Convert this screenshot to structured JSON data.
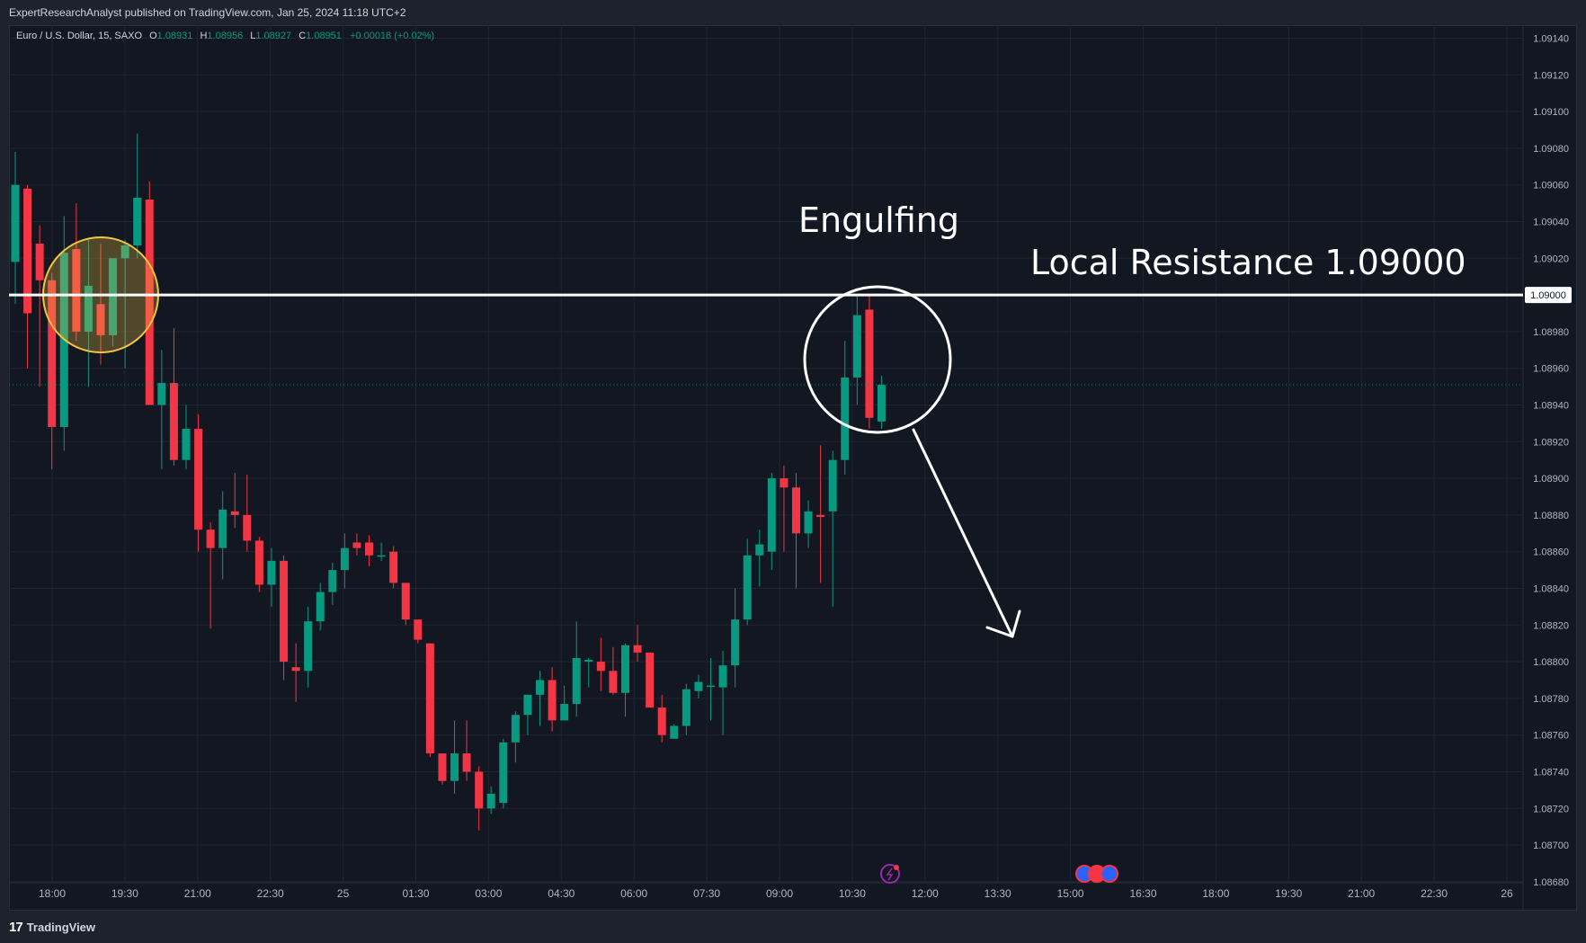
{
  "header": {
    "published_text": "ExpertResearchAnalyst published on TradingView.com, Jan 25, 2024 11:18 UTC+2"
  },
  "legend": {
    "symbol": "Euro / U.S. Dollar, 15, SAXO",
    "o_label": "O",
    "o_value": "1.08931",
    "h_label": "H",
    "h_value": "1.08956",
    "l_label": "L",
    "l_value": "1.08927",
    "c_label": "C",
    "c_value": "1.08951",
    "change": "+0.00018 (+0.02%)"
  },
  "footer": {
    "logo_mark": "17",
    "logo_text": "TradingView"
  },
  "colors": {
    "background": "#131722",
    "frame": "#1e222d",
    "grid": "#1f2430",
    "up": "#089981",
    "down": "#f23645",
    "axis_text": "#b2b5be",
    "annotation": "#ffffff",
    "highlight_circle": "#f5c542"
  },
  "chart_data": {
    "type": "candlestick",
    "symbol": "Euro / U.S. Dollar",
    "timeframe": "15",
    "source": "SAXO",
    "y_tick_labels": [
      "1.09140",
      "1.09120",
      "1.09100",
      "1.09080",
      "1.09060",
      "1.09040",
      "1.09020",
      "1.09000",
      "1.08980",
      "1.08960",
      "1.08940",
      "1.08920",
      "1.08900",
      "1.08880",
      "1.08860",
      "1.08840",
      "1.08820",
      "1.08800",
      "1.08780",
      "1.08760",
      "1.08740",
      "1.08720",
      "1.08700",
      "1.08680"
    ],
    "x_tick_labels": [
      "18:00",
      "19:30",
      "21:00",
      "22:30",
      "25",
      "01:30",
      "03:00",
      "04:30",
      "06:00",
      "07:30",
      "09:00",
      "10:30",
      "12:00",
      "13:30",
      "15:00",
      "16:30",
      "18:00",
      "19:30",
      "21:00",
      "22:30",
      "26"
    ],
    "ylim": [
      1.0868,
      1.0914
    ],
    "last_price": 1.08951,
    "horizontal_lines": [
      {
        "price": 1.09,
        "label": "1.09000"
      }
    ],
    "annotations": [
      {
        "text": "Engulfing"
      },
      {
        "text": "Local Resistance 1.09000"
      }
    ],
    "candles": [
      {
        "o": 1.09018,
        "h": 1.09078,
        "l": 1.08995,
        "c": 1.0906
      },
      {
        "o": 1.09058,
        "h": 1.0906,
        "l": 1.0896,
        "c": 1.0899
      },
      {
        "o": 1.09028,
        "h": 1.09038,
        "l": 1.0895,
        "c": 1.09008
      },
      {
        "o": 1.09008,
        "h": 1.09012,
        "l": 1.08905,
        "c": 1.08928
      },
      {
        "o": 1.08928,
        "h": 1.09043,
        "l": 1.08915,
        "c": 1.09023
      },
      {
        "o": 1.09025,
        "h": 1.0905,
        "l": 1.08975,
        "c": 1.0898
      },
      {
        "o": 1.0898,
        "h": 1.0903,
        "l": 1.0895,
        "c": 1.09005
      },
      {
        "o": 1.08995,
        "h": 1.09028,
        "l": 1.08962,
        "c": 1.08978
      },
      {
        "o": 1.08978,
        "h": 1.0902,
        "l": 1.08972,
        "c": 1.0902
      },
      {
        "o": 1.0902,
        "h": 1.0903,
        "l": 1.0896,
        "c": 1.09027
      },
      {
        "o": 1.09027,
        "h": 1.09088,
        "l": 1.0902,
        "c": 1.09053
      },
      {
        "o": 1.09052,
        "h": 1.09062,
        "l": 1.0894,
        "c": 1.0894
      },
      {
        "o": 1.0894,
        "h": 1.0897,
        "l": 1.08905,
        "c": 1.08952
      },
      {
        "o": 1.08952,
        "h": 1.08982,
        "l": 1.08907,
        "c": 1.0891
      },
      {
        "o": 1.0891,
        "h": 1.0894,
        "l": 1.08905,
        "c": 1.08927
      },
      {
        "o": 1.08927,
        "h": 1.08935,
        "l": 1.0886,
        "c": 1.08872
      },
      {
        "o": 1.08872,
        "h": 1.08876,
        "l": 1.08818,
        "c": 1.08862
      },
      {
        "o": 1.08862,
        "h": 1.08893,
        "l": 1.08845,
        "c": 1.08883
      },
      {
        "o": 1.08882,
        "h": 1.08903,
        "l": 1.08873,
        "c": 1.0888
      },
      {
        "o": 1.0888,
        "h": 1.08902,
        "l": 1.0886,
        "c": 1.08866
      },
      {
        "o": 1.08866,
        "h": 1.08868,
        "l": 1.08838,
        "c": 1.08842
      },
      {
        "o": 1.08842,
        "h": 1.08862,
        "l": 1.0883,
        "c": 1.08855
      },
      {
        "o": 1.08855,
        "h": 1.08858,
        "l": 1.0879,
        "c": 1.088
      },
      {
        "o": 1.08797,
        "h": 1.0881,
        "l": 1.08778,
        "c": 1.08795
      },
      {
        "o": 1.08795,
        "h": 1.0883,
        "l": 1.08786,
        "c": 1.08822
      },
      {
        "o": 1.08822,
        "h": 1.08843,
        "l": 1.08817,
        "c": 1.08838
      },
      {
        "o": 1.08838,
        "h": 1.08854,
        "l": 1.08831,
        "c": 1.0885
      },
      {
        "o": 1.0885,
        "h": 1.0887,
        "l": 1.0884,
        "c": 1.08862
      },
      {
        "o": 1.08865,
        "h": 1.0887,
        "l": 1.08858,
        "c": 1.08862
      },
      {
        "o": 1.08865,
        "h": 1.08869,
        "l": 1.08852,
        "c": 1.08858
      },
      {
        "o": 1.08858,
        "h": 1.08865,
        "l": 1.08855,
        "c": 1.08858
      },
      {
        "o": 1.0886,
        "h": 1.08863,
        "l": 1.0884,
        "c": 1.08843
      },
      {
        "o": 1.08843,
        "h": 1.08843,
        "l": 1.0882,
        "c": 1.08823
      },
      {
        "o": 1.08823,
        "h": 1.08823,
        "l": 1.0881,
        "c": 1.08812
      },
      {
        "o": 1.0881,
        "h": 1.0881,
        "l": 1.08748,
        "c": 1.0875
      },
      {
        "o": 1.0875,
        "h": 1.0875,
        "l": 1.08733,
        "c": 1.08735
      },
      {
        "o": 1.08735,
        "h": 1.08768,
        "l": 1.08728,
        "c": 1.0875
      },
      {
        "o": 1.0875,
        "h": 1.08768,
        "l": 1.08735,
        "c": 1.0874
      },
      {
        "o": 1.0874,
        "h": 1.08743,
        "l": 1.08708,
        "c": 1.0872
      },
      {
        "o": 1.0872,
        "h": 1.08732,
        "l": 1.08717,
        "c": 1.08728
      },
      {
        "o": 1.08723,
        "h": 1.08758,
        "l": 1.0872,
        "c": 1.08756
      },
      {
        "o": 1.08756,
        "h": 1.08773,
        "l": 1.08745,
        "c": 1.08771
      },
      {
        "o": 1.08771,
        "h": 1.0878,
        "l": 1.0876,
        "c": 1.08782
      },
      {
        "o": 1.08782,
        "h": 1.08795,
        "l": 1.08765,
        "c": 1.0879
      },
      {
        "o": 1.0879,
        "h": 1.08797,
        "l": 1.08762,
        "c": 1.08768
      },
      {
        "o": 1.08768,
        "h": 1.08787,
        "l": 1.0877,
        "c": 1.08777
      },
      {
        "o": 1.08777,
        "h": 1.08822,
        "l": 1.0877,
        "c": 1.08802
      },
      {
        "o": 1.088,
        "h": 1.08802,
        "l": 1.08786,
        "c": 1.08801
      },
      {
        "o": 1.088,
        "h": 1.08813,
        "l": 1.08784,
        "c": 1.08795
      },
      {
        "o": 1.08795,
        "h": 1.08808,
        "l": 1.08782,
        "c": 1.08783
      },
      {
        "o": 1.08783,
        "h": 1.0881,
        "l": 1.0877,
        "c": 1.08809
      },
      {
        "o": 1.08809,
        "h": 1.0882,
        "l": 1.088,
        "c": 1.08805
      },
      {
        "o": 1.08805,
        "h": 1.08805,
        "l": 1.08775,
        "c": 1.08775
      },
      {
        "o": 1.08775,
        "h": 1.08782,
        "l": 1.08756,
        "c": 1.0876
      },
      {
        "o": 1.08758,
        "h": 1.08766,
        "l": 1.08758,
        "c": 1.08765
      },
      {
        "o": 1.08765,
        "h": 1.08788,
        "l": 1.0876,
        "c": 1.08785
      },
      {
        "o": 1.08784,
        "h": 1.08793,
        "l": 1.0878,
        "c": 1.08789
      },
      {
        "o": 1.08787,
        "h": 1.08802,
        "l": 1.08768,
        "c": 1.08787
      },
      {
        "o": 1.08786,
        "h": 1.08806,
        "l": 1.0876,
        "c": 1.08798
      },
      {
        "o": 1.08798,
        "h": 1.0884,
        "l": 1.08786,
        "c": 1.08823
      },
      {
        "o": 1.08823,
        "h": 1.08867,
        "l": 1.0882,
        "c": 1.08858
      },
      {
        "o": 1.08858,
        "h": 1.08872,
        "l": 1.08841,
        "c": 1.08864
      },
      {
        "o": 1.0886,
        "h": 1.08903,
        "l": 1.0885,
        "c": 1.089
      },
      {
        "o": 1.089,
        "h": 1.08907,
        "l": 1.0886,
        "c": 1.08895
      },
      {
        "o": 1.08895,
        "h": 1.08903,
        "l": 1.0884,
        "c": 1.0887
      },
      {
        "o": 1.0887,
        "h": 1.08888,
        "l": 1.08862,
        "c": 1.08882
      },
      {
        "o": 1.0888,
        "h": 1.08918,
        "l": 1.08843,
        "c": 1.08879
      },
      {
        "o": 1.08882,
        "h": 1.08915,
        "l": 1.0883,
        "c": 1.0891
      },
      {
        "o": 1.0891,
        "h": 1.08975,
        "l": 1.08902,
        "c": 1.08955
      },
      {
        "o": 1.08955,
        "h": 1.09,
        "l": 1.0894,
        "c": 1.08989
      },
      {
        "o": 1.08992,
        "h": 1.09,
        "l": 1.08927,
        "c": 1.08933
      },
      {
        "o": 1.08931,
        "h": 1.08956,
        "l": 1.08927,
        "c": 1.08951
      }
    ]
  }
}
